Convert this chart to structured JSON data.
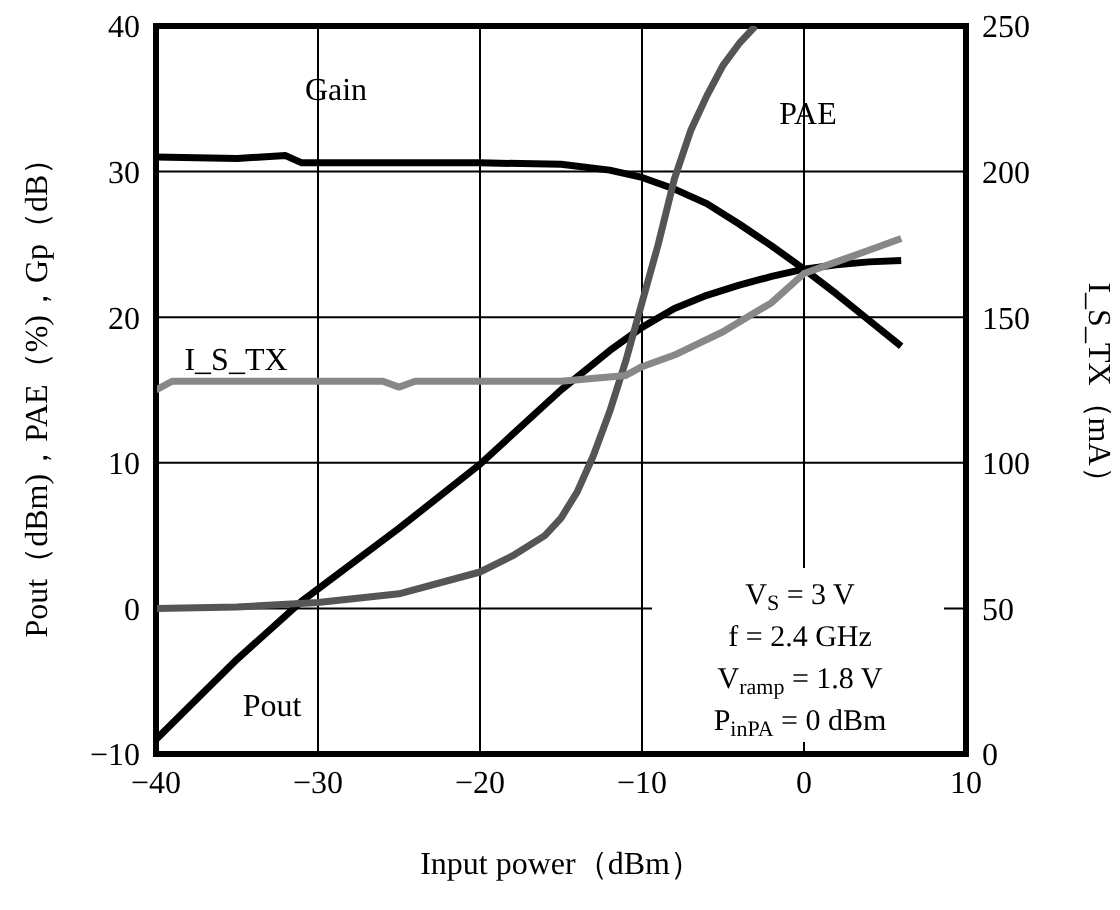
{
  "chart_data": {
    "type": "line",
    "xlabel": "Input power（dBm）",
    "ylabel": "Pout（dBm)，PAE（%)，Gp（dB）",
    "y2label": "I_S_TX（mA）",
    "xlim": [
      -40,
      10
    ],
    "xticks": [
      {
        "value": -40,
        "label": "−40"
      },
      {
        "value": -30,
        "label": "−30"
      },
      {
        "value": -20,
        "label": "−20"
      },
      {
        "value": -10,
        "label": "−10"
      },
      0,
      10
    ],
    "ylim": [
      -10,
      40
    ],
    "yticks": [
      {
        "value": -10,
        "label": "−10"
      },
      0,
      10,
      20,
      30,
      40
    ],
    "y2lim": [
      0,
      250
    ],
    "y2ticks": [
      0,
      50,
      100,
      150,
      200,
      250
    ],
    "grid": true,
    "legend": false,
    "marker": "none",
    "series": [
      {
        "name": "Gain",
        "color": "#000000",
        "x": [
          -40,
          -35,
          -32,
          -31,
          -30,
          -25,
          -20,
          -15,
          -12,
          -10,
          -8,
          -6,
          -4,
          -2,
          0,
          2,
          4,
          6
        ],
        "values": [
          31,
          30.9,
          31.1,
          30.6,
          30.6,
          30.6,
          30.6,
          30.5,
          30.1,
          29.6,
          28.8,
          27.8,
          26.4,
          24.9,
          23.3,
          21.6,
          19.8,
          18
        ]
      },
      {
        "name": "Pout",
        "color": "#000000",
        "x": [
          -40,
          -35,
          -31,
          -25,
          -20,
          -15,
          -12,
          -10,
          -8,
          -6,
          -4,
          -2,
          0,
          2,
          4,
          6
        ],
        "values": [
          -9,
          -3.5,
          0.5,
          5.5,
          9.9,
          15,
          17.7,
          19.3,
          20.6,
          21.5,
          22.2,
          22.8,
          23.3,
          23.6,
          23.8,
          23.9
        ]
      },
      {
        "name": "PAE",
        "color": "#555555",
        "x": [
          -40,
          -35,
          -30,
          -25,
          -20,
          -18,
          -16,
          -15,
          -14,
          -13,
          -12,
          -11,
          -10,
          -9,
          -8,
          -7,
          -6,
          -5,
          -4,
          -3
        ],
        "values": [
          0,
          0.1,
          0.4,
          1,
          2.5,
          3.6,
          5,
          6.2,
          8,
          10.5,
          13.5,
          17,
          21,
          25,
          29.5,
          32.8,
          35.2,
          37.3,
          38.8,
          40
        ]
      },
      {
        "name": "I_S_TX",
        "color": "#888888",
        "axis": "y2",
        "x": [
          -40,
          -39,
          -35,
          -30,
          -26,
          -25,
          -24,
          -20,
          -15,
          -11,
          -10,
          -8,
          -5,
          -2,
          0,
          2,
          4,
          6
        ],
        "values": [
          125,
          128,
          128,
          128,
          128,
          126,
          128,
          128,
          128,
          130,
          133,
          137,
          145,
          155,
          165,
          169,
          173,
          177
        ]
      }
    ],
    "annotations": [
      "V$_{S}$ = 3 V",
      "f = 2.4 GHz",
      "V$_{ramp}$ = 1.8 V",
      "P$_{inPA}$ = 0 dBm"
    ]
  }
}
